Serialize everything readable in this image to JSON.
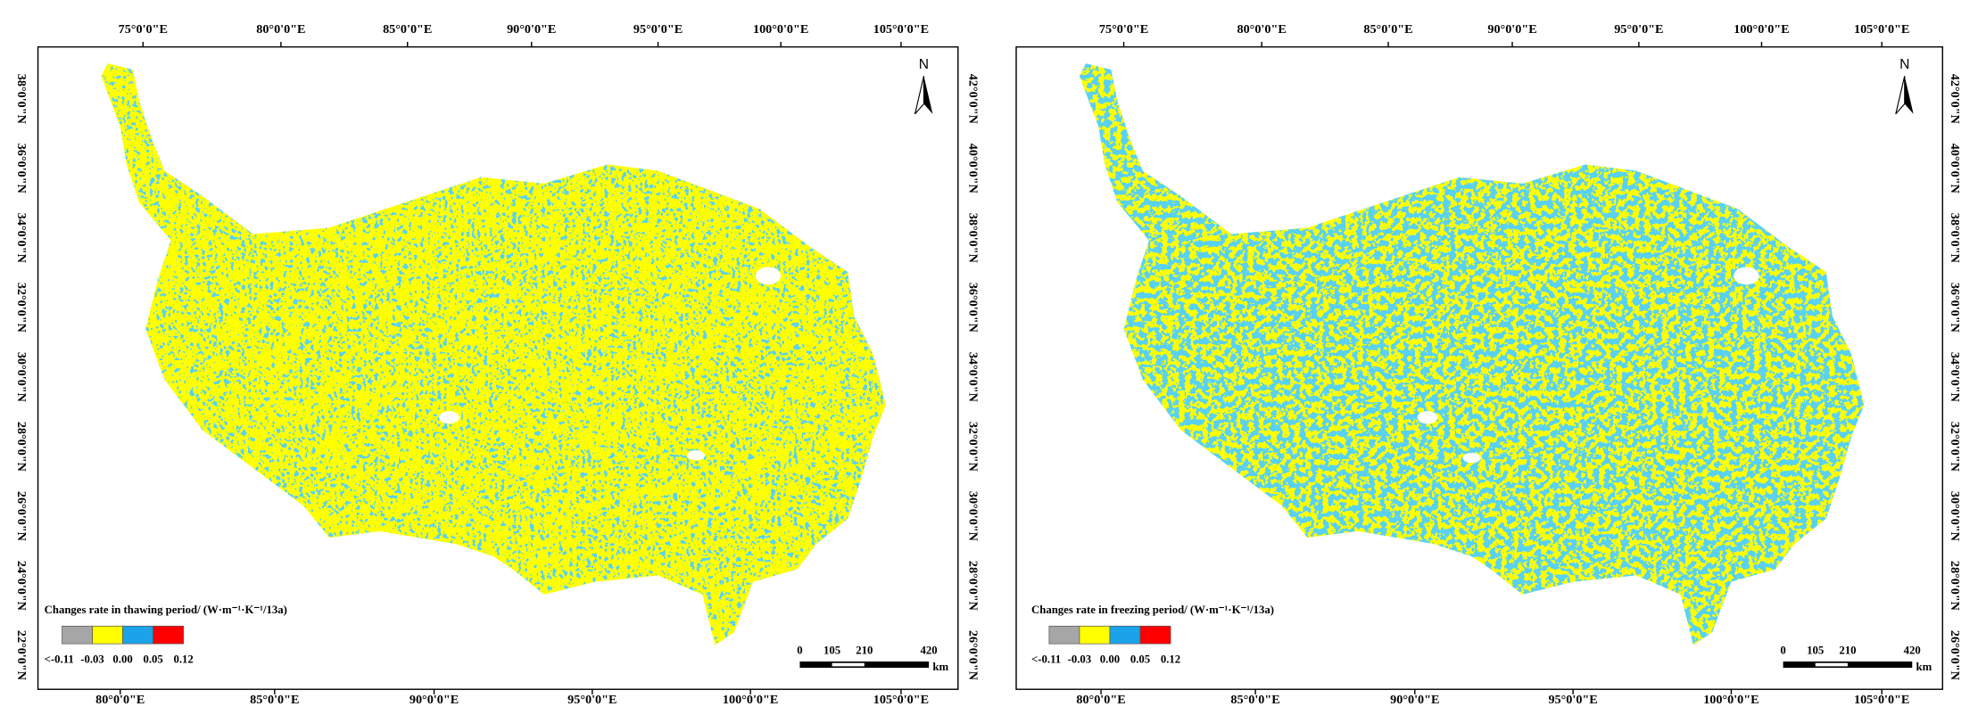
{
  "panels": [
    {
      "top_labels": [
        "75°0'0\"E",
        "80°0'0\"E",
        "85°0'0\"E",
        "90°0'0\"E",
        "95°0'0\"E",
        "100°0'0\"E",
        "105°0'0\"E"
      ],
      "bottom_labels": [
        "80°0'0\"E",
        "85°0'0\"E",
        "90°0'0\"E",
        "95°0'0\"E",
        "100°0'0\"E",
        "105°0'0\"E"
      ],
      "left_labels": [
        "38°0'0\"N",
        "36°0'0\"N",
        "34°0'0\"N",
        "32°0'0\"N",
        "30°0'0\"N",
        "28°0'0\"N",
        "26°0'0\"N",
        "24°0'0\"N",
        "22°0'0\"N"
      ],
      "right_labels": [],
      "north": "N",
      "legend": {
        "title": "Changes rate in thawing period/ (W·m⁻¹·K⁻¹/13a)",
        "labels": [
          "<-0.11",
          "-0.03",
          "0.00",
          "0.05",
          "0.12"
        ],
        "colors": [
          "#a6a6a6",
          "#ffff00",
          "#1aa3e8",
          "#ff0000"
        ]
      },
      "scale": {
        "labels": [
          "0",
          "105",
          "210",
          "420"
        ],
        "unit": "km"
      }
    },
    {
      "top_labels": [
        "75°0'0\"E",
        "80°0'0\"E",
        "85°0'0\"E",
        "90°0'0\"E",
        "95°0'0\"E",
        "100°0'0\"E",
        "105°0'0\"E"
      ],
      "bottom_labels": [
        "80°0'0\"E",
        "85°0'0\"E",
        "90°0'0\"E",
        "95°0'0\"E",
        "100°0'0\"E",
        "105°0'0\"E"
      ],
      "left_labels": [
        "42°0'0\"N",
        "40°0'0\"N",
        "38°0'0\"N",
        "36°0'0\"N",
        "34°0'0\"N",
        "32°0'0\"N",
        "30°0'0\"N",
        "28°0'0\"N",
        "26°0'0\"N"
      ],
      "right_labels": [
        "42°0'0\"N",
        "40°0'0\"N",
        "38°0'0\"N",
        "36°0'0\"N",
        "34°0'0\"N",
        "32°0'0\"N",
        "30°0'0\"N",
        "28°0'0\"N",
        "26°0'0\"N"
      ],
      "north": "N",
      "legend": {
        "title": "Changes rate in freezing period/ (W·m⁻¹·K⁻¹/13a)",
        "labels": [
          "<-0.11",
          "-0.03",
          "0.00",
          "0.05",
          "0.12"
        ],
        "colors": [
          "#a6a6a6",
          "#ffff00",
          "#1aa3e8",
          "#ff0000"
        ]
      },
      "scale": {
        "labels": [
          "0",
          "105",
          "210",
          "420"
        ],
        "unit": "km"
      }
    }
  ]
}
